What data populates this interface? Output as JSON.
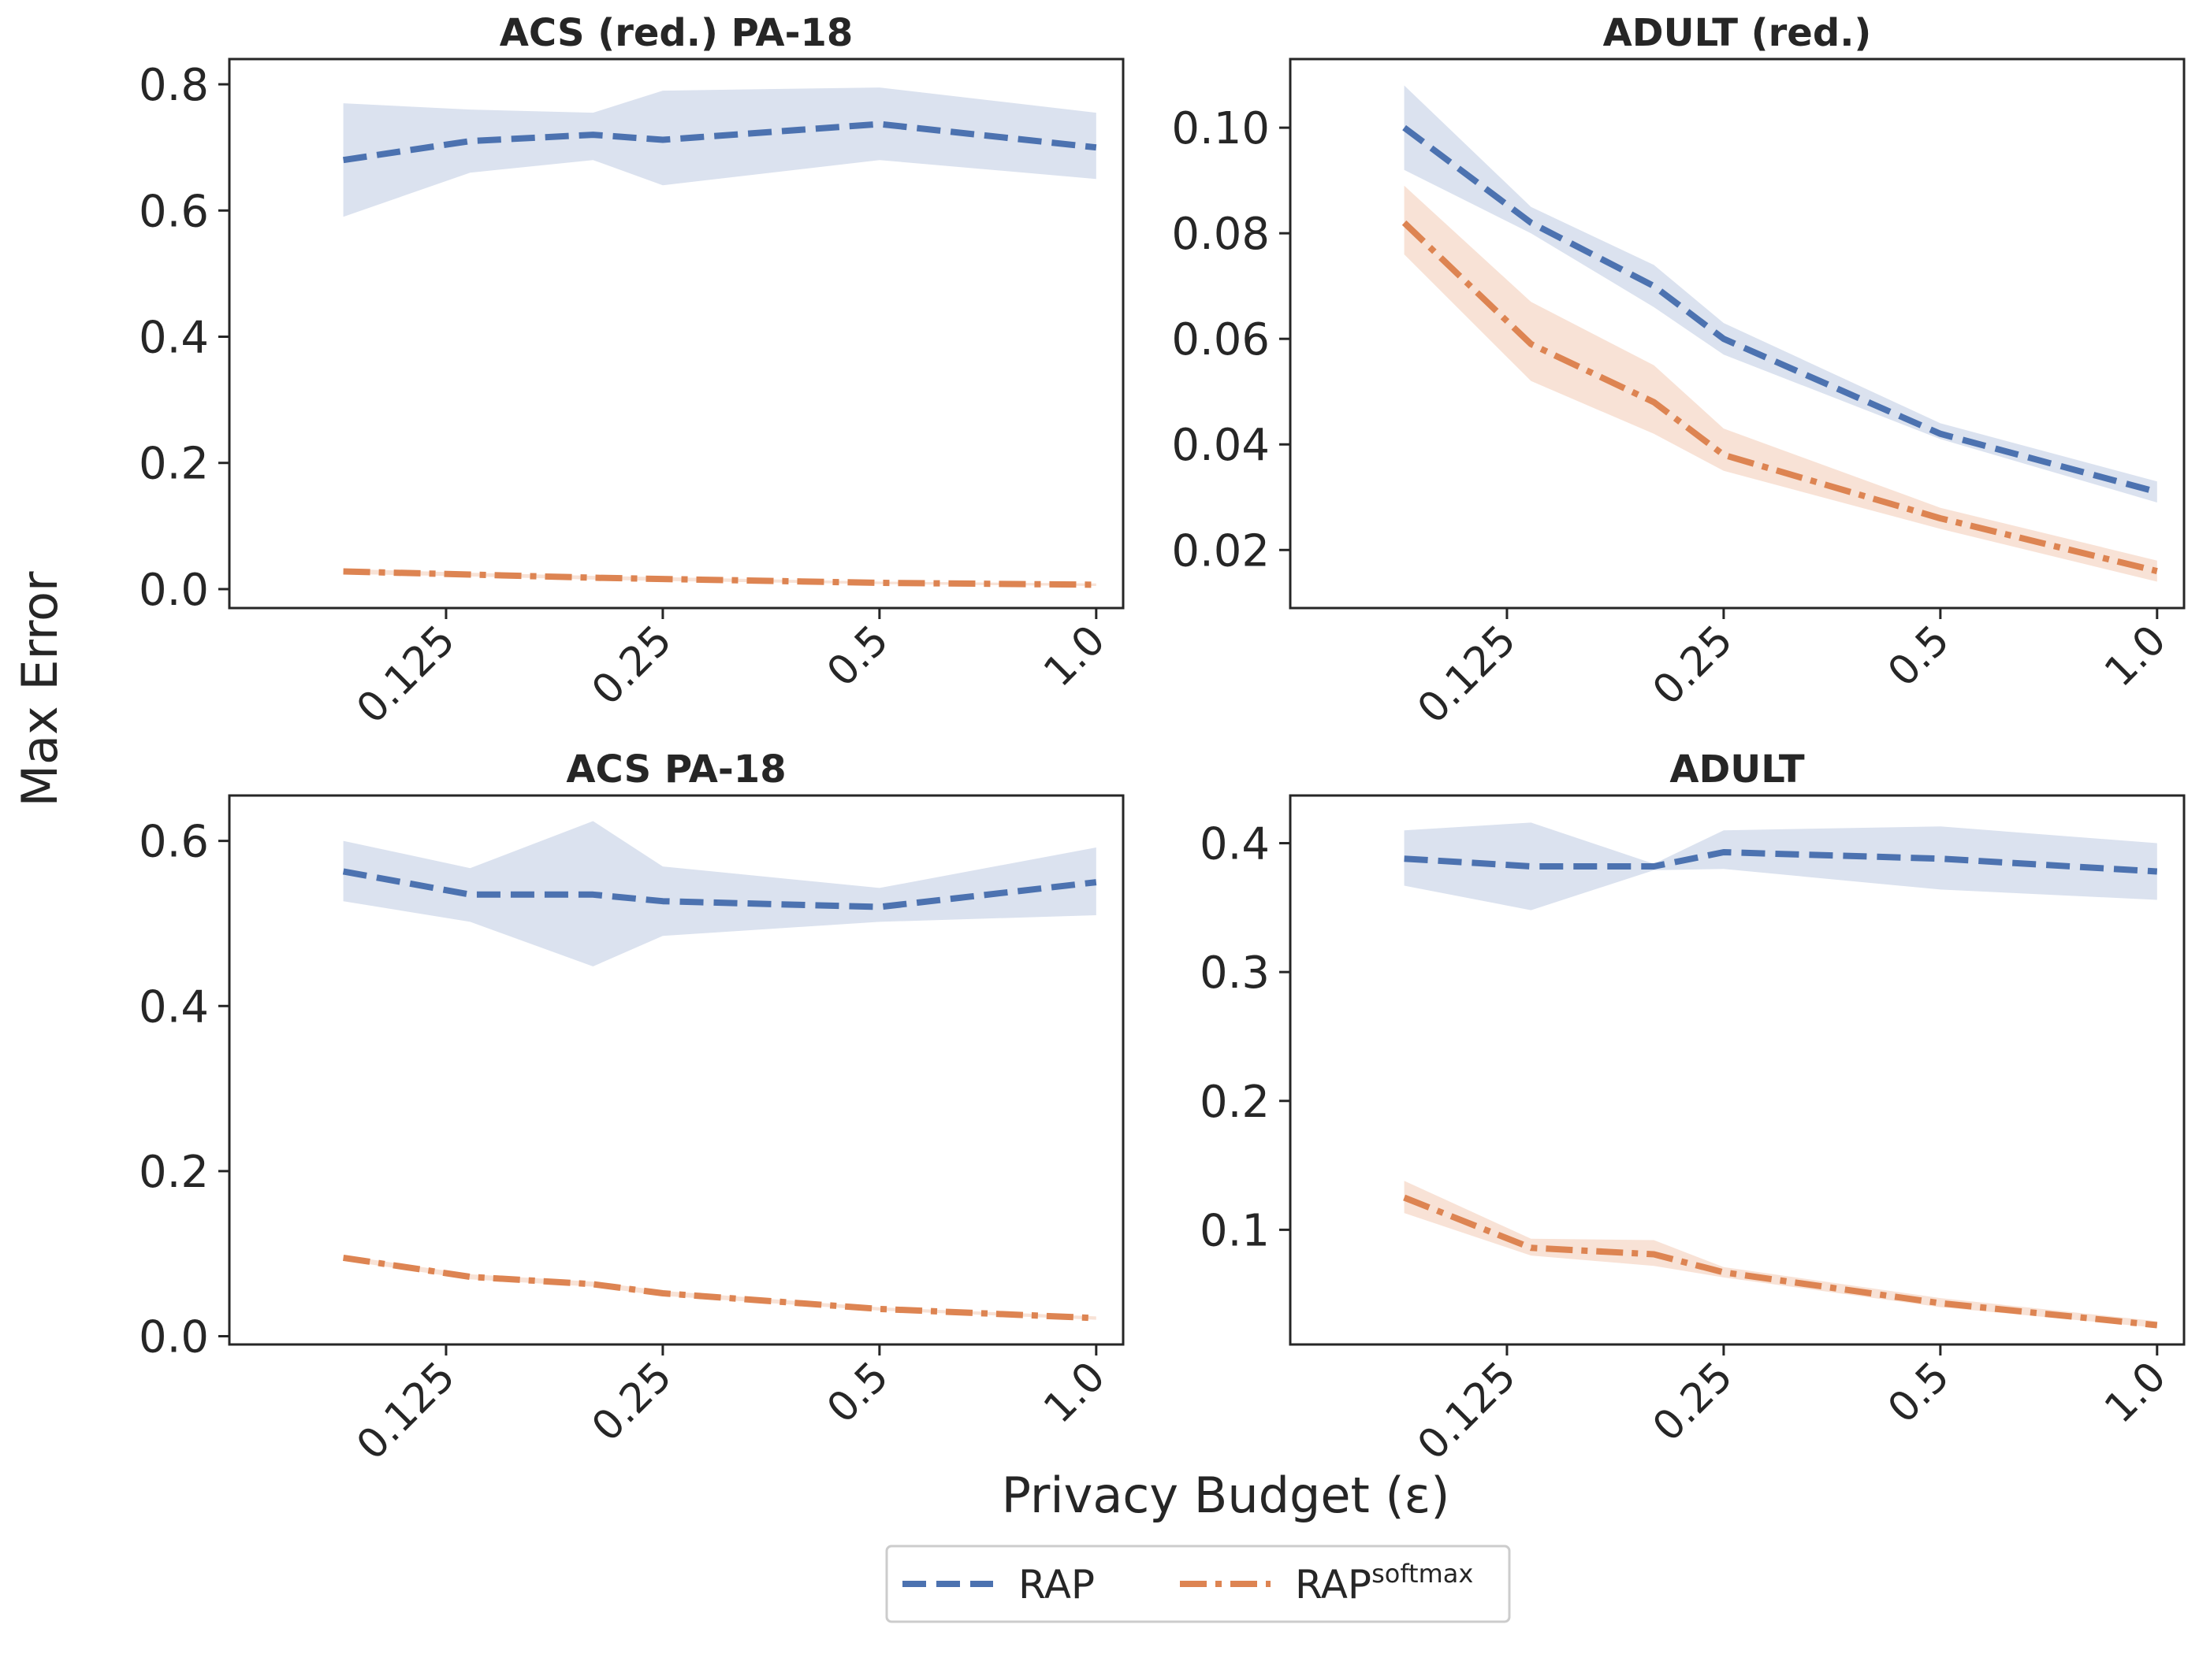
{
  "figure": {
    "ylabel": "Max Error",
    "xlabel": "Privacy Budget (ε)"
  },
  "legend": {
    "items": [
      {
        "label": "RAP",
        "sup": "",
        "color": "#4c72b0",
        "dash": "dashed"
      },
      {
        "label": "RAP",
        "sup": "softmax",
        "color": "#dd8452",
        "dash": "dashdot"
      }
    ]
  },
  "colors": {
    "rap": "#4c72b0",
    "rap_band": "#dbe2ef",
    "softmax": "#dd8452",
    "softmax_band": "#f7ddcf"
  },
  "chart_data": [
    {
      "type": "line",
      "title": "ACS (red.) PA-18",
      "xscale": "log2",
      "x": [
        0.09,
        0.135,
        0.2,
        0.25,
        0.5,
        1.0
      ],
      "xticks": [
        0.125,
        0.25,
        0.5,
        1.0
      ],
      "xtick_labels": [
        "0.125",
        "0.25",
        "0.5",
        "1.0"
      ],
      "xlim": [
        0.0625,
        1.09
      ],
      "ylim": [
        -0.03,
        0.84
      ],
      "yticks": [
        0.0,
        0.2,
        0.4,
        0.6,
        0.8
      ],
      "ytick_labels": [
        "0.0",
        "0.2",
        "0.4",
        "0.6",
        "0.8"
      ],
      "series": [
        {
          "name": "RAP",
          "values": [
            0.68,
            0.71,
            0.72,
            0.712,
            0.737,
            0.7
          ],
          "lower": [
            0.59,
            0.66,
            0.68,
            0.64,
            0.68,
            0.65
          ],
          "upper": [
            0.77,
            0.76,
            0.755,
            0.79,
            0.795,
            0.755
          ]
        },
        {
          "name": "RAP softmax",
          "values": [
            0.028,
            0.023,
            0.018,
            0.016,
            0.01,
            0.007
          ],
          "lower": [
            0.024,
            0.02,
            0.015,
            0.013,
            0.008,
            0.005
          ],
          "upper": [
            0.032,
            0.026,
            0.021,
            0.019,
            0.012,
            0.009
          ]
        }
      ]
    },
    {
      "type": "line",
      "title": "ADULT (red.)",
      "xscale": "log2",
      "x": [
        0.09,
        0.135,
        0.2,
        0.25,
        0.5,
        1.0
      ],
      "xticks": [
        0.125,
        0.25,
        0.5,
        1.0
      ],
      "xtick_labels": [
        "0.125",
        "0.25",
        "0.5",
        "1.0"
      ],
      "xlim": [
        0.0625,
        1.09
      ],
      "ylim": [
        0.009,
        0.113
      ],
      "yticks": [
        0.02,
        0.04,
        0.06,
        0.08,
        0.1
      ],
      "ytick_labels": [
        "0.02",
        "0.04",
        "0.06",
        "0.08",
        "0.10"
      ],
      "series": [
        {
          "name": "RAP",
          "values": [
            0.1,
            0.082,
            0.07,
            0.06,
            0.042,
            0.031
          ],
          "lower": [
            0.092,
            0.08,
            0.066,
            0.057,
            0.041,
            0.029
          ],
          "upper": [
            0.108,
            0.085,
            0.074,
            0.063,
            0.044,
            0.033
          ]
        },
        {
          "name": "RAP softmax",
          "values": [
            0.082,
            0.059,
            0.048,
            0.038,
            0.026,
            0.016
          ],
          "lower": [
            0.076,
            0.052,
            0.042,
            0.035,
            0.024,
            0.014
          ],
          "upper": [
            0.089,
            0.067,
            0.055,
            0.043,
            0.028,
            0.018
          ]
        }
      ]
    },
    {
      "type": "line",
      "title": "ACS PA-18",
      "xscale": "log2",
      "x": [
        0.09,
        0.135,
        0.2,
        0.25,
        0.5,
        1.0
      ],
      "xticks": [
        0.125,
        0.25,
        0.5,
        1.0
      ],
      "xtick_labels": [
        "0.125",
        "0.25",
        "0.5",
        "1.0"
      ],
      "xlim": [
        0.0625,
        1.09
      ],
      "ylim": [
        -0.01,
        0.655
      ],
      "yticks": [
        0.0,
        0.2,
        0.4,
        0.6
      ],
      "ytick_labels": [
        "0.0",
        "0.2",
        "0.4",
        "0.6"
      ],
      "series": [
        {
          "name": "RAP",
          "values": [
            0.563,
            0.535,
            0.535,
            0.527,
            0.52,
            0.55
          ],
          "lower": [
            0.527,
            0.502,
            0.448,
            0.485,
            0.502,
            0.51
          ],
          "upper": [
            0.6,
            0.567,
            0.624,
            0.569,
            0.543,
            0.592
          ]
        },
        {
          "name": "RAP softmax",
          "values": [
            0.095,
            0.072,
            0.063,
            0.052,
            0.033,
            0.022
          ],
          "lower": [
            0.092,
            0.069,
            0.06,
            0.049,
            0.031,
            0.02
          ],
          "upper": [
            0.098,
            0.075,
            0.066,
            0.055,
            0.035,
            0.024
          ]
        }
      ]
    },
    {
      "type": "line",
      "title": "ADULT",
      "xscale": "log2",
      "x": [
        0.09,
        0.135,
        0.2,
        0.25,
        0.5,
        1.0
      ],
      "xticks": [
        0.125,
        0.25,
        0.5,
        1.0
      ],
      "xtick_labels": [
        "0.125",
        "0.25",
        "0.5",
        "1.0"
      ],
      "xlim": [
        0.0625,
        1.09
      ],
      "ylim": [
        0.011,
        0.437
      ],
      "yticks": [
        0.1,
        0.2,
        0.3,
        0.4
      ],
      "ytick_labels": [
        "0.1",
        "0.2",
        "0.3",
        "0.4"
      ],
      "series": [
        {
          "name": "RAP",
          "values": [
            0.388,
            0.382,
            0.382,
            0.393,
            0.388,
            0.378
          ],
          "lower": [
            0.367,
            0.348,
            0.379,
            0.38,
            0.364,
            0.356
          ],
          "upper": [
            0.41,
            0.416,
            0.384,
            0.41,
            0.413,
            0.4
          ]
        },
        {
          "name": "RAP softmax",
          "values": [
            0.125,
            0.086,
            0.081,
            0.067,
            0.043,
            0.026
          ],
          "lower": [
            0.113,
            0.08,
            0.072,
            0.063,
            0.04,
            0.024
          ],
          "upper": [
            0.138,
            0.093,
            0.092,
            0.071,
            0.047,
            0.029
          ]
        }
      ]
    }
  ]
}
